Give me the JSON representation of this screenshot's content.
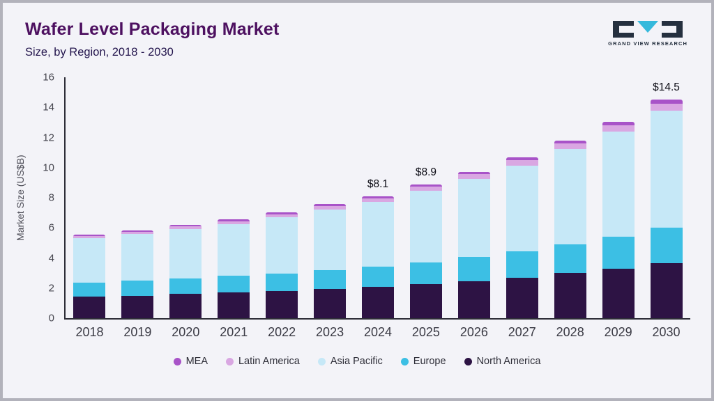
{
  "header": {
    "title": "Wafer Level Packaging Market",
    "subtitle": "Size, by Region, 2018 - 2030"
  },
  "logo": {
    "text": "GRAND VIEW RESEARCH"
  },
  "colors": {
    "background": "#f3f3f8",
    "title": "#4d1060",
    "axis": "#2e2e38"
  },
  "chart_data": {
    "type": "bar",
    "stacked": true,
    "title": "Wafer Level Packaging Market Size, by Region, 2018 - 2030",
    "xlabel": "",
    "ylabel": "Market Size (US$B)",
    "ylim": [
      0,
      16
    ],
    "yticks": [
      0,
      2,
      4,
      6,
      8,
      10,
      12,
      14,
      16
    ],
    "grid": false,
    "legend_position": "bottom",
    "categories": [
      "2018",
      "2019",
      "2020",
      "2021",
      "2022",
      "2023",
      "2024",
      "2025",
      "2026",
      "2027",
      "2028",
      "2029",
      "2030"
    ],
    "series": [
      {
        "name": "North America",
        "color": "#2d1344",
        "values": [
          1.45,
          1.5,
          1.6,
          1.7,
          1.8,
          1.95,
          2.1,
          2.25,
          2.45,
          2.7,
          3.0,
          3.3,
          3.65
        ]
      },
      {
        "name": "Europe",
        "color": "#3cbfe4",
        "values": [
          0.9,
          1.0,
          1.05,
          1.1,
          1.15,
          1.25,
          1.3,
          1.45,
          1.6,
          1.75,
          1.9,
          2.1,
          2.35
        ]
      },
      {
        "name": "Asia Pacific",
        "color": "#c6e8f7",
        "values": [
          2.95,
          3.1,
          3.25,
          3.45,
          3.75,
          4.0,
          4.3,
          4.75,
          5.2,
          5.7,
          6.35,
          7.0,
          7.8
        ]
      },
      {
        "name": "Latin America",
        "color": "#d9a7e2",
        "values": [
          0.15,
          0.15,
          0.2,
          0.2,
          0.2,
          0.25,
          0.25,
          0.3,
          0.3,
          0.35,
          0.35,
          0.4,
          0.45
        ]
      },
      {
        "name": "MEA",
        "color": "#a853c8",
        "values": [
          0.1,
          0.1,
          0.1,
          0.1,
          0.15,
          0.15,
          0.15,
          0.15,
          0.15,
          0.2,
          0.2,
          0.25,
          0.25
        ]
      }
    ],
    "annotations": [
      {
        "category": "2024",
        "label": "$8.1"
      },
      {
        "category": "2025",
        "label": "$8.9"
      },
      {
        "category": "2030",
        "label": "$14.5"
      }
    ],
    "legend": [
      {
        "label": "MEA",
        "color": "#a853c8"
      },
      {
        "label": "Latin America",
        "color": "#d9a7e2"
      },
      {
        "label": "Asia Pacific",
        "color": "#c6e8f7"
      },
      {
        "label": "Europe",
        "color": "#3cbfe4"
      },
      {
        "label": "North America",
        "color": "#2d1344"
      }
    ]
  }
}
